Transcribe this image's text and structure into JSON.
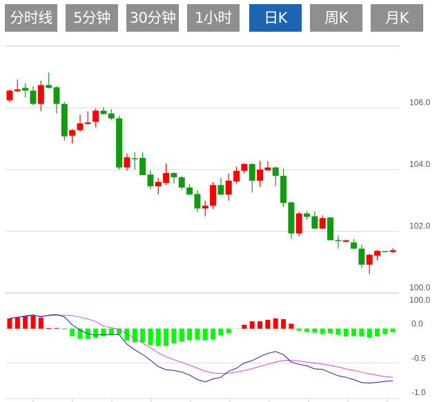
{
  "tabs": [
    {
      "label": "分时线",
      "active": false
    },
    {
      "label": "5分钟",
      "active": false
    },
    {
      "label": "30分钟",
      "active": false
    },
    {
      "label": "1小时",
      "active": false
    },
    {
      "label": "日K",
      "active": true
    },
    {
      "label": "周K",
      "active": false
    },
    {
      "label": "月K",
      "active": false
    }
  ],
  "colors": {
    "up": "#ff0000",
    "down": "#139a13",
    "hist_up": "#ff0000",
    "hist_down": "#00ff00",
    "dif": "#1a1aaa",
    "dea": "#e040e0",
    "tab": "#8f8f8f",
    "tab_active": "#1a66b3"
  },
  "chart_data": [
    {
      "type": "candlestick",
      "ylim": [
        100,
        108
      ],
      "yticks": [
        "106.0",
        "104.0",
        "102.0",
        "100.0"
      ],
      "ytick_values": [
        106,
        104,
        102,
        100
      ],
      "grid": true,
      "ohlc": [
        [
          106.25,
          106.6,
          106.18,
          106.56
        ],
        [
          106.54,
          106.92,
          106.52,
          106.6
        ],
        [
          106.65,
          106.8,
          106.34,
          106.56
        ],
        [
          106.56,
          106.7,
          106.09,
          106.13
        ],
        [
          106.13,
          106.88,
          105.89,
          106.74
        ],
        [
          106.74,
          107.15,
          106.63,
          106.65
        ],
        [
          106.67,
          106.7,
          105.82,
          106.13
        ],
        [
          106.13,
          106.2,
          104.94,
          105.08
        ],
        [
          105.1,
          105.32,
          104.85,
          105.28
        ],
        [
          105.28,
          105.78,
          105.24,
          105.5
        ],
        [
          105.48,
          105.89,
          105.45,
          105.53
        ],
        [
          105.55,
          105.98,
          105.37,
          105.91
        ],
        [
          105.91,
          106.02,
          105.78,
          105.8
        ],
        [
          105.82,
          105.96,
          105.6,
          105.66
        ],
        [
          105.66,
          105.75,
          104.0,
          104.07
        ],
        [
          104.07,
          104.52,
          103.96,
          104.4
        ],
        [
          104.37,
          104.56,
          104.0,
          104.35
        ],
        [
          104.38,
          104.56,
          103.82,
          103.82
        ],
        [
          103.84,
          103.98,
          103.37,
          103.46
        ],
        [
          103.46,
          103.73,
          103.19,
          103.6
        ],
        [
          103.57,
          104.2,
          103.5,
          103.89
        ],
        [
          103.89,
          103.92,
          103.55,
          103.75
        ],
        [
          103.75,
          103.8,
          103.35,
          103.42
        ],
        [
          103.42,
          103.53,
          103.17,
          103.19
        ],
        [
          103.21,
          103.33,
          102.63,
          102.74
        ],
        [
          102.74,
          103.0,
          102.49,
          102.83
        ],
        [
          102.83,
          103.6,
          102.72,
          103.5
        ],
        [
          103.5,
          103.73,
          103.17,
          103.19
        ],
        [
          103.19,
          103.87,
          102.99,
          103.64
        ],
        [
          103.62,
          104.09,
          103.55,
          103.96
        ],
        [
          103.96,
          104.22,
          103.87,
          104.18
        ],
        [
          104.18,
          104.2,
          103.26,
          103.64
        ],
        [
          103.64,
          104.29,
          103.44,
          104.0
        ],
        [
          103.98,
          104.27,
          103.95,
          104.07
        ],
        [
          104.07,
          104.1,
          103.46,
          103.8
        ],
        [
          103.8,
          104.02,
          102.79,
          102.92
        ],
        [
          102.94,
          102.96,
          101.75,
          101.93
        ],
        [
          101.93,
          102.63,
          101.84,
          102.58
        ],
        [
          102.58,
          102.65,
          102.38,
          102.47
        ],
        [
          102.49,
          102.65,
          102.07,
          102.09
        ],
        [
          102.09,
          102.52,
          102.07,
          102.43
        ],
        [
          102.45,
          102.46,
          101.71,
          101.71
        ],
        [
          101.72,
          101.87,
          101.44,
          101.7
        ],
        [
          101.66,
          101.73,
          101.65,
          101.71
        ],
        [
          101.64,
          101.75,
          101.42,
          101.44
        ],
        [
          101.44,
          101.57,
          100.81,
          100.92
        ],
        [
          100.92,
          101.28,
          100.61,
          101.24
        ],
        [
          101.21,
          101.39,
          101.06,
          101.37
        ],
        [
          101.36,
          101.37,
          101.33,
          101.35
        ],
        [
          101.33,
          101.45,
          101.3,
          101.39
        ]
      ]
    },
    {
      "type": "macd",
      "ylim": [
        -1.02,
        0.52
      ],
      "yticks": [
        "0.0",
        "-0.5",
        "-1.0"
      ],
      "ytick_values": [
        0,
        -0.5,
        -1.0
      ],
      "top_label": "100.0",
      "grid": true,
      "histogram": [
        0.147,
        0.163,
        0.183,
        0.197,
        0.16,
        0.007,
        0.01,
        -0.01,
        -0.11,
        -0.15,
        -0.15,
        -0.137,
        -0.11,
        -0.083,
        -0.083,
        -0.173,
        -0.2,
        -0.2,
        -0.24,
        -0.253,
        -0.253,
        -0.213,
        -0.187,
        -0.17,
        -0.16,
        -0.17,
        -0.16,
        -0.1,
        -0.067,
        0,
        0.057,
        0.107,
        0.107,
        0.13,
        0.15,
        0.14,
        0.073,
        -0.027,
        -0.05,
        -0.057,
        -0.08,
        -0.067,
        -0.087,
        -0.113,
        -0.11,
        -0.113,
        -0.133,
        -0.113,
        -0.08,
        -0.05
      ],
      "dif": [
        0.15,
        0.167,
        0.187,
        0.2,
        0.173,
        0.197,
        0.207,
        0.173,
        0.057,
        -0.02,
        -0.077,
        -0.093,
        -0.087,
        -0.087,
        -0.087,
        -0.227,
        -0.31,
        -0.377,
        -0.46,
        -0.553,
        -0.6,
        -0.61,
        -0.633,
        -0.677,
        -0.743,
        -0.777,
        -0.733,
        -0.71,
        -0.62,
        -0.577,
        -0.5,
        -0.467,
        -0.41,
        -0.36,
        -0.333,
        -0.377,
        -0.487,
        -0.52,
        -0.543,
        -0.587,
        -0.593,
        -0.643,
        -0.687,
        -0.71,
        -0.743,
        -0.787,
        -0.793,
        -0.783,
        -0.77,
        -0.76
      ],
      "dea": [
        0.15,
        0.167,
        0.18,
        0.193,
        0.183,
        0.19,
        0.197,
        0.197,
        0.19,
        0.167,
        0.14,
        0.107,
        0.04,
        0.013,
        -0.007,
        -0.077,
        -0.143,
        -0.21,
        -0.277,
        -0.353,
        -0.41,
        -0.453,
        -0.493,
        -0.533,
        -0.577,
        -0.62,
        -0.647,
        -0.653,
        -0.65,
        -0.633,
        -0.61,
        -0.583,
        -0.553,
        -0.52,
        -0.487,
        -0.463,
        -0.463,
        -0.47,
        -0.487,
        -0.503,
        -0.517,
        -0.537,
        -0.56,
        -0.587,
        -0.61,
        -0.633,
        -0.66,
        -0.68,
        -0.7,
        -0.71
      ]
    }
  ]
}
